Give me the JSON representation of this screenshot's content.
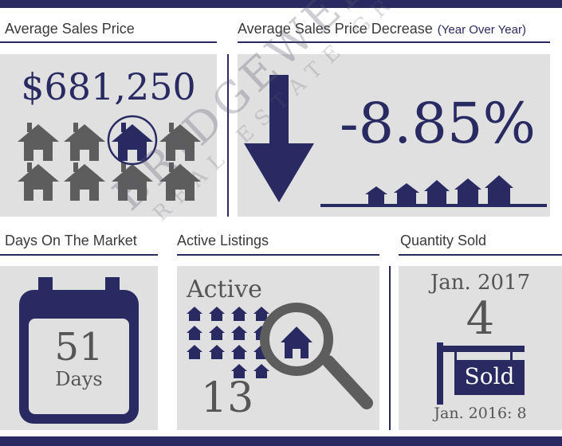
{
  "headers": {
    "avg_price": "Average Sales Price",
    "avg_decrease": "Average Sales Price Decrease",
    "avg_decrease_sub": "(Year Over Year)",
    "days": "Days On The Market",
    "active": "Active Listings",
    "sold": "Quantity Sold"
  },
  "avg_price": {
    "value": "$681,250",
    "icon": "house-icon"
  },
  "decrease": {
    "value": "-8.85%",
    "icon": "down-arrow-icon"
  },
  "days": {
    "value": "51",
    "unit": "Days",
    "icon": "calendar-icon"
  },
  "active": {
    "label": "Active",
    "value": "13",
    "icon": "magnifier-house-icon"
  },
  "sold": {
    "current_period": "Jan. 2017",
    "value": "4",
    "sign": "Sold",
    "previous": "Jan. 2016: 8"
  },
  "watermark": {
    "line1": "BRIDGEWELL",
    "line2": "REAL ESTATE GROUP"
  },
  "colors": {
    "navy": "#2a2a63",
    "gray_icon": "#5d5d5d",
    "panel": "#e0e0e0"
  }
}
